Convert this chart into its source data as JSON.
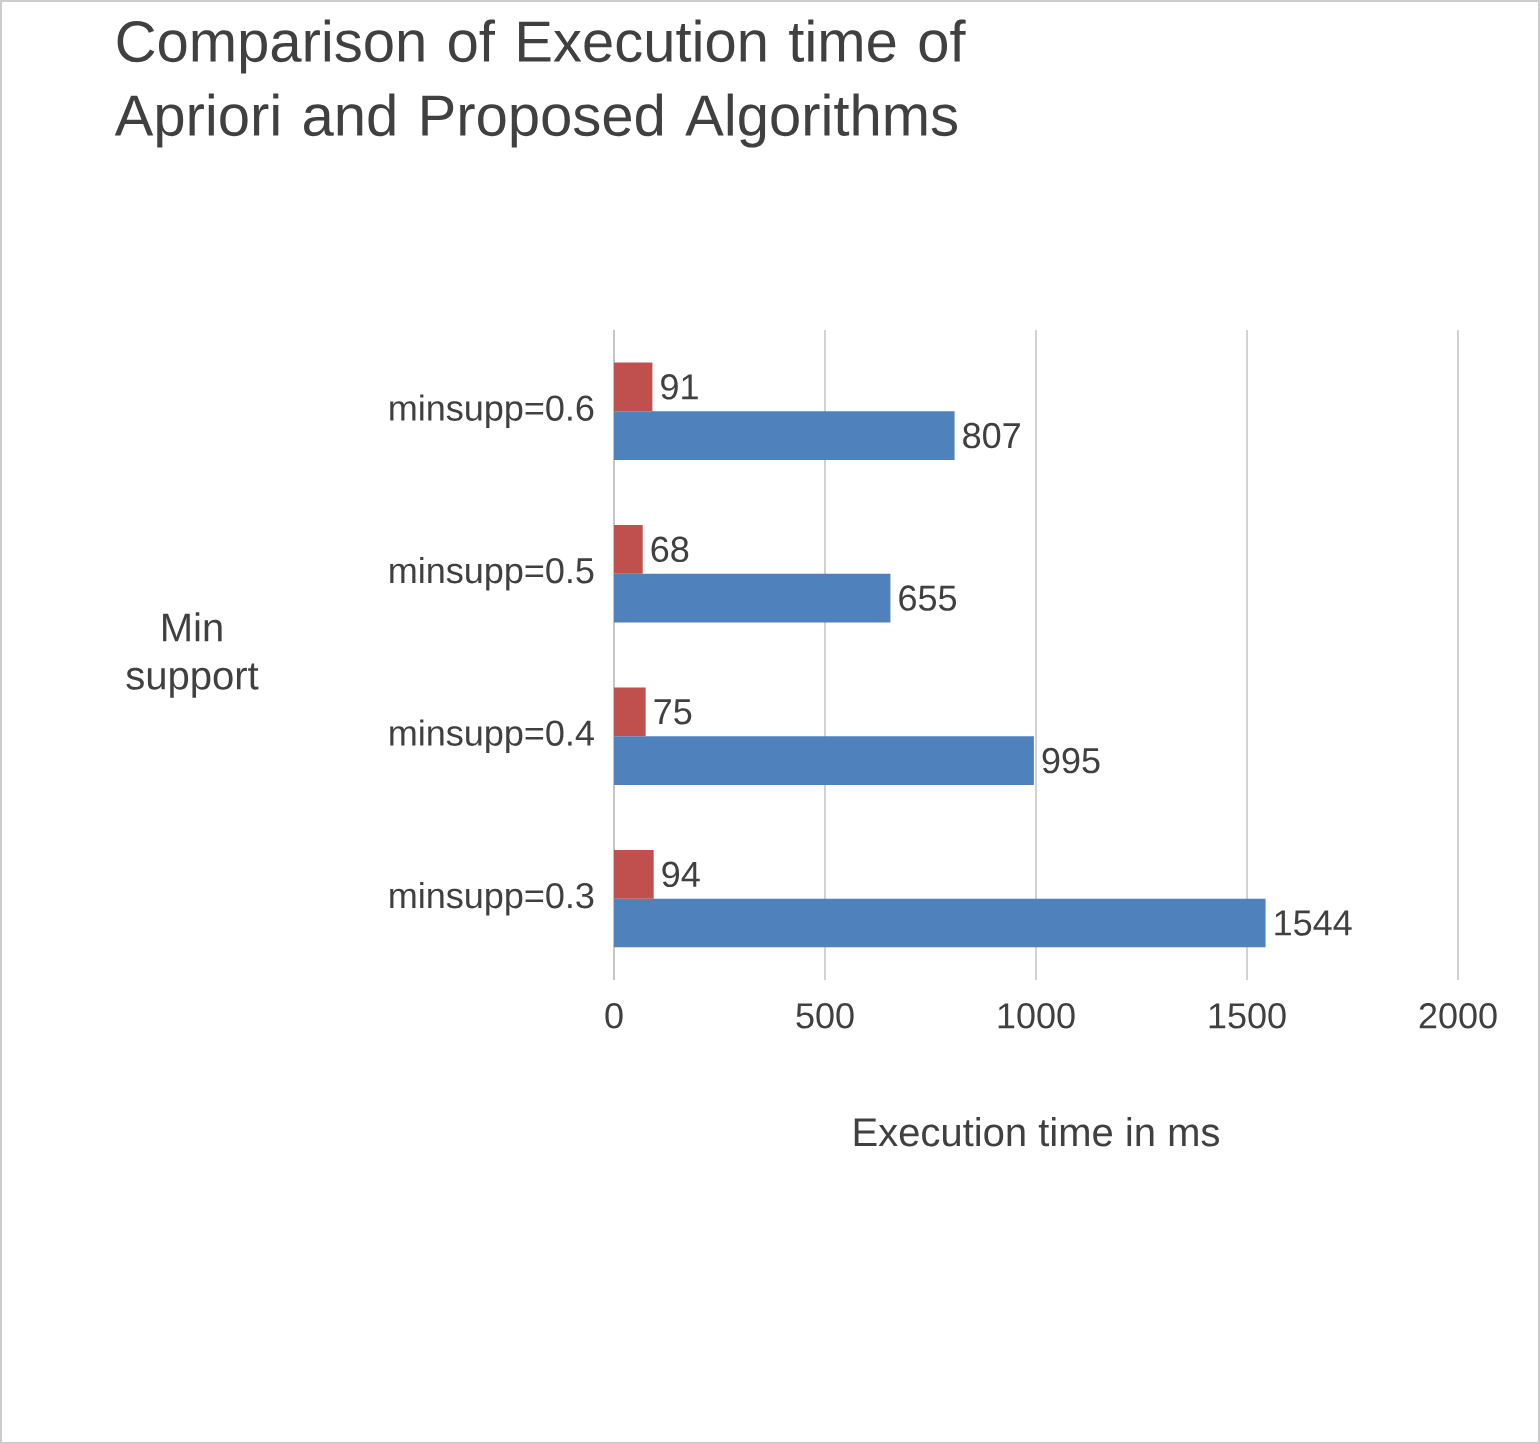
{
  "chart_data": {
    "type": "bar",
    "orientation": "horizontal",
    "title": "Comparison of Execution time of Apriori and Proposed Algorithms",
    "xlabel": "Execution time in ms",
    "ylabel": "Min support",
    "categories": [
      "minsupp=0.6",
      "minsupp=0.5",
      "minsupp=0.4",
      "minsupp=0.3"
    ],
    "series": [
      {
        "color": "#4f81bd",
        "values": [
          807,
          655,
          995,
          1544
        ]
      },
      {
        "color": "#c0504d",
        "values": [
          91,
          68,
          75,
          94
        ]
      }
    ],
    "xlim": [
      0,
      2000
    ],
    "xticks": [
      0,
      500,
      1000,
      1500,
      2000
    ],
    "grid": "x",
    "data_labels": true
  }
}
